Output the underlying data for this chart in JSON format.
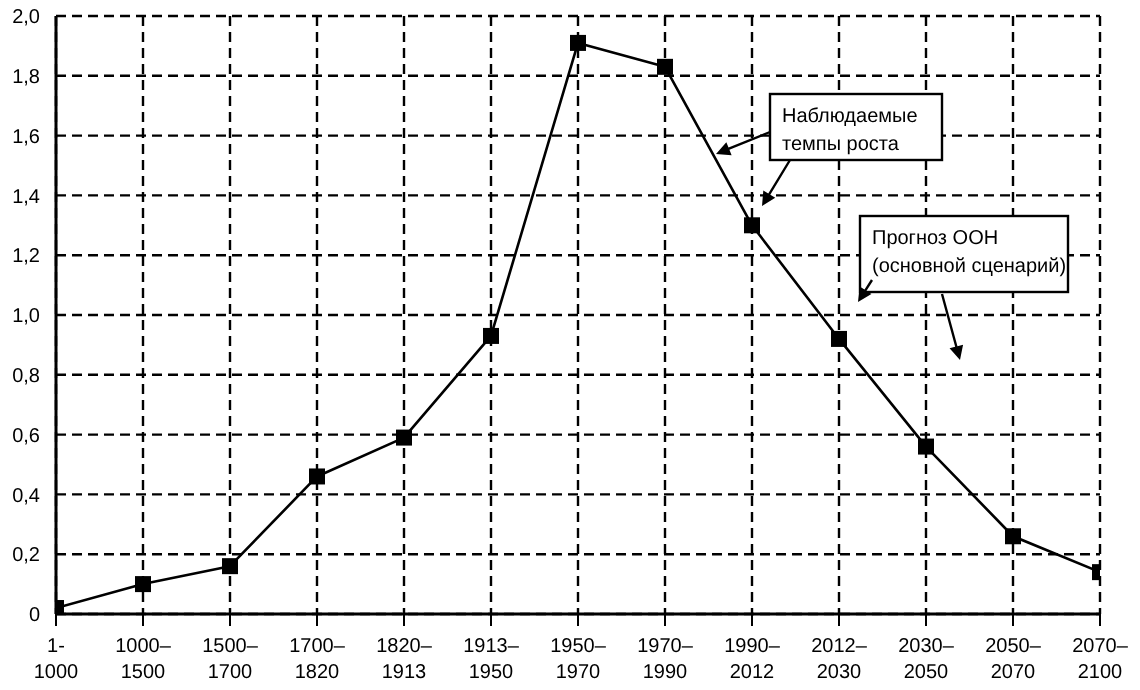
{
  "chart_data": {
    "type": "line",
    "categories": [
      "1-1000",
      "1000–1500",
      "1500–1700",
      "1700–1820",
      "1820–1913",
      "1913–1950",
      "1950–1970",
      "1970–1990",
      "1990–2012",
      "2012–2030",
      "2030–2050",
      "2050–2070",
      "2070–2100"
    ],
    "series": [
      {
        "color": "#000000",
        "values": [
          0.02,
          0.1,
          0.16,
          0.46,
          0.59,
          0.93,
          1.91,
          1.83,
          1.3,
          0.92,
          0.56,
          0.26,
          0.14
        ]
      }
    ],
    "ylim": [
      0,
      2.0
    ],
    "yticks": [
      0,
      {
        "value": 0.2,
        "label": "0,2"
      },
      {
        "value": 0.4,
        "label": "0,4"
      },
      {
        "value": 0.6,
        "label": "0,6"
      },
      {
        "value": 0.8,
        "label": "0,8"
      },
      {
        "value": 1.0,
        "label": "1,0"
      },
      {
        "value": 1.2,
        "label": "1,2"
      },
      {
        "value": 1.4,
        "label": "1,4"
      },
      {
        "value": 1.6,
        "label": "1,6"
      },
      {
        "value": 1.8,
        "label": "1,8"
      },
      {
        "value": 2.0,
        "label": "2,0"
      }
    ],
    "grid": true,
    "marker": "square",
    "line_style": "solid",
    "annotations": [
      "Наблюдаемые темпы роста",
      "Прогноз ООН (основной сценарий)"
    ]
  }
}
